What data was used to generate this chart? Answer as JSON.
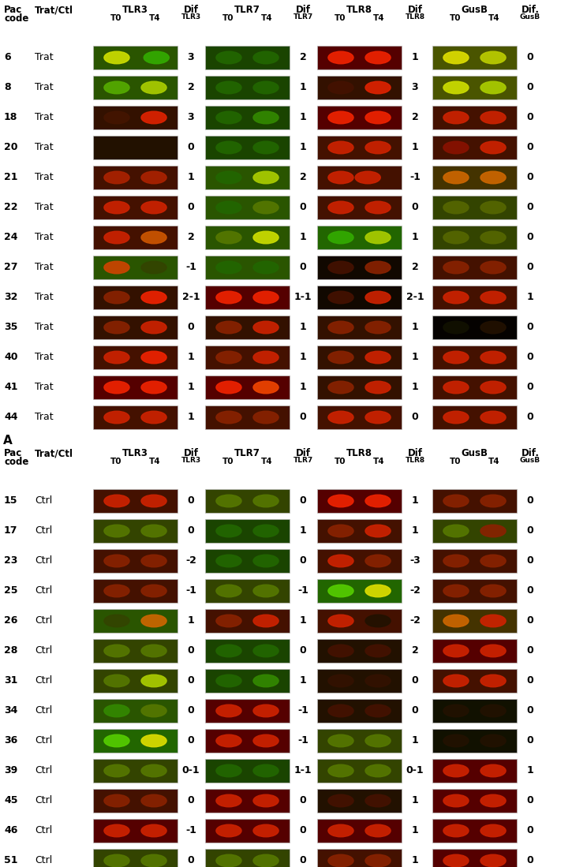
{
  "trat_rows": [
    {
      "pac": "6",
      "type": "Trat",
      "tlr3_bg": "#2a5500",
      "tlr3_b1": "#ccdd00",
      "tlr3_b2": "#33aa00",
      "tlr3_b1x": 0.28,
      "tlr3_b2x": 0.75,
      "dif3": "3",
      "tlr7_bg": "#1a4400",
      "tlr7_b1": "#226600",
      "tlr7_b2": "#226600",
      "tlr7_b1x": 0.28,
      "tlr7_b2x": 0.72,
      "dif7": "2",
      "tlr8_bg": "#550000",
      "tlr8_b1": "#ee2200",
      "tlr8_b2": "#ee2200",
      "tlr8_b1x": 0.28,
      "tlr8_b2x": 0.72,
      "dif8": "1",
      "gusb_bg": "#4a5500",
      "gusb_b1": "#dddd00",
      "gusb_b2": "#bbcc00",
      "gusb_b1x": 0.28,
      "gusb_b2x": 0.72,
      "difg": "0"
    },
    {
      "pac": "8",
      "type": "Trat",
      "tlr3_bg": "#2a5500",
      "tlr3_b1": "#55aa00",
      "tlr3_b2": "#aacc00",
      "tlr3_b1x": 0.28,
      "tlr3_b2x": 0.72,
      "dif3": "2",
      "tlr7_bg": "#1a4400",
      "tlr7_b1": "#226600",
      "tlr7_b2": "#226600",
      "tlr7_b1x": 0.28,
      "tlr7_b2x": 0.72,
      "dif7": "1",
      "tlr8_bg": "#331100",
      "tlr8_b1": "#441100",
      "tlr8_b2": "#dd2200",
      "tlr8_b1x": 0.28,
      "tlr8_b2x": 0.72,
      "dif8": "3",
      "gusb_bg": "#4a5500",
      "gusb_b1": "#ccdd00",
      "gusb_b2": "#aacc00",
      "gusb_b1x": 0.28,
      "gusb_b2x": 0.72,
      "difg": "0"
    },
    {
      "pac": "18",
      "type": "Trat",
      "tlr3_bg": "#331100",
      "tlr3_b1": "#441500",
      "tlr3_b2": "#dd2200",
      "tlr3_b1x": 0.28,
      "tlr3_b2x": 0.72,
      "dif3": "3",
      "tlr7_bg": "#1a4400",
      "tlr7_b1": "#226600",
      "tlr7_b2": "#338800",
      "tlr7_b1x": 0.28,
      "tlr7_b2x": 0.72,
      "dif7": "1",
      "tlr8_bg": "#550000",
      "tlr8_b1": "#ee2200",
      "tlr8_b2": "#ee2200",
      "tlr8_b1x": 0.28,
      "tlr8_b2x": 0.72,
      "dif8": "2",
      "gusb_bg": "#441100",
      "gusb_b1": "#cc2200",
      "gusb_b2": "#cc2200",
      "gusb_b1x": 0.28,
      "gusb_b2x": 0.72,
      "difg": "0"
    },
    {
      "pac": "20",
      "type": "Trat",
      "tlr3_bg": "#221100",
      "tlr3_b1": "#221100",
      "tlr3_b2": "#221100",
      "tlr3_b1x": 0.28,
      "tlr3_b2x": 0.72,
      "dif3": "0",
      "tlr7_bg": "#1a4400",
      "tlr7_b1": "#226600",
      "tlr7_b2": "#226600",
      "tlr7_b1x": 0.28,
      "tlr7_b2x": 0.72,
      "dif7": "1",
      "tlr8_bg": "#441100",
      "tlr8_b1": "#cc2200",
      "tlr8_b2": "#cc2200",
      "tlr8_b1x": 0.28,
      "tlr8_b2x": 0.72,
      "dif8": "1",
      "gusb_bg": "#441100",
      "gusb_b1": "#881100",
      "gusb_b2": "#cc2200",
      "gusb_b1x": 0.28,
      "gusb_b2x": 0.72,
      "difg": "0"
    },
    {
      "pac": "21",
      "type": "Trat",
      "tlr3_bg": "#441100",
      "tlr3_b1": "#aa2200",
      "tlr3_b2": "#aa2200",
      "tlr3_b1x": 0.28,
      "tlr3_b2x": 0.72,
      "dif3": "1",
      "tlr7_bg": "#2a5500",
      "tlr7_b1": "#226600",
      "tlr7_b2": "#aacc00",
      "tlr7_b1x": 0.28,
      "tlr7_b2x": 0.72,
      "dif7": "2",
      "tlr8_bg": "#441100",
      "tlr8_b1": "#cc2200",
      "tlr8_b2": "#cc2200",
      "tlr8_b1x": 0.28,
      "tlr8_b2x": 0.6,
      "dif8": "-1",
      "gusb_bg": "#443300",
      "gusb_b1": "#cc6600",
      "gusb_b2": "#cc6600",
      "gusb_b1x": 0.28,
      "gusb_b2x": 0.72,
      "difg": "0"
    },
    {
      "pac": "22",
      "type": "Trat",
      "tlr3_bg": "#441100",
      "tlr3_b1": "#cc2200",
      "tlr3_b2": "#cc2200",
      "tlr3_b1x": 0.28,
      "tlr3_b2x": 0.72,
      "dif3": "0",
      "tlr7_bg": "#2a5500",
      "tlr7_b1": "#226600",
      "tlr7_b2": "#557700",
      "tlr7_b1x": 0.28,
      "tlr7_b2x": 0.72,
      "dif7": "0",
      "tlr8_bg": "#441100",
      "tlr8_b1": "#cc2200",
      "tlr8_b2": "#cc2200",
      "tlr8_b1x": 0.28,
      "tlr8_b2x": 0.72,
      "dif8": "0",
      "gusb_bg": "#334400",
      "gusb_b1": "#556600",
      "gusb_b2": "#556600",
      "gusb_b1x": 0.28,
      "gusb_b2x": 0.72,
      "difg": "0"
    },
    {
      "pac": "24",
      "type": "Trat",
      "tlr3_bg": "#441100",
      "tlr3_b1": "#cc2200",
      "tlr3_b2": "#cc5500",
      "tlr3_b1x": 0.28,
      "tlr3_b2x": 0.72,
      "dif3": "2",
      "tlr7_bg": "#2a5500",
      "tlr7_b1": "#557700",
      "tlr7_b2": "#ccdd00",
      "tlr7_b1x": 0.28,
      "tlr7_b2x": 0.72,
      "dif7": "1",
      "tlr8_bg": "#226600",
      "tlr8_b1": "#33aa00",
      "tlr8_b2": "#aacc00",
      "tlr8_b1x": 0.28,
      "tlr8_b2x": 0.72,
      "dif8": "1",
      "gusb_bg": "#334400",
      "gusb_b1": "#556600",
      "gusb_b2": "#556600",
      "gusb_b1x": 0.28,
      "gusb_b2x": 0.72,
      "difg": "0"
    },
    {
      "pac": "27",
      "type": "Trat",
      "tlr3_bg": "#2a5500",
      "tlr3_b1": "#cc4400",
      "tlr3_b2": "#334400",
      "tlr3_b1x": 0.28,
      "tlr3_b2x": 0.72,
      "dif3": "-1",
      "tlr7_bg": "#2a5500",
      "tlr7_b1": "#226600",
      "tlr7_b2": "#226600",
      "tlr7_b1x": 0.28,
      "tlr7_b2x": 0.72,
      "dif7": "0",
      "tlr8_bg": "#110800",
      "tlr8_b1": "#441100",
      "tlr8_b2": "#882200",
      "tlr8_b1x": 0.28,
      "tlr8_b2x": 0.72,
      "dif8": "2",
      "gusb_bg": "#441100",
      "gusb_b1": "#882200",
      "gusb_b2": "#882200",
      "gusb_b1x": 0.28,
      "gusb_b2x": 0.72,
      "difg": "0"
    },
    {
      "pac": "32",
      "type": "Trat",
      "tlr3_bg": "#331100",
      "tlr3_b1": "#882200",
      "tlr3_b2": "#ee2200",
      "tlr3_b1x": 0.28,
      "tlr3_b2x": 0.72,
      "dif3": "2-1",
      "tlr7_bg": "#550000",
      "tlr7_b1": "#ee2200",
      "tlr7_b2": "#ee2200",
      "tlr7_b1x": 0.28,
      "tlr7_b2x": 0.72,
      "dif7": "1-1",
      "tlr8_bg": "#110800",
      "tlr8_b1": "#441100",
      "tlr8_b2": "#cc2200",
      "tlr8_b1x": 0.28,
      "tlr8_b2x": 0.72,
      "dif8": "2-1",
      "gusb_bg": "#441100",
      "gusb_b1": "#cc2200",
      "gusb_b2": "#cc2200",
      "gusb_b1x": 0.28,
      "gusb_b2x": 0.72,
      "difg": "1"
    },
    {
      "pac": "35",
      "type": "Trat",
      "tlr3_bg": "#331100",
      "tlr3_b1": "#882200",
      "tlr3_b2": "#cc2200",
      "tlr3_b1x": 0.28,
      "tlr3_b2x": 0.72,
      "dif3": "0",
      "tlr7_bg": "#331100",
      "tlr7_b1": "#882200",
      "tlr7_b2": "#cc2200",
      "tlr7_b1x": 0.28,
      "tlr7_b2x": 0.72,
      "dif7": "1",
      "tlr8_bg": "#331100",
      "tlr8_b1": "#882200",
      "tlr8_b2": "#882200",
      "tlr8_b1x": 0.28,
      "tlr8_b2x": 0.72,
      "dif8": "1",
      "gusb_bg": "#050200",
      "gusb_b1": "#111100",
      "gusb_b2": "#221100",
      "gusb_b1x": 0.28,
      "gusb_b2x": 0.72,
      "difg": "0"
    },
    {
      "pac": "40",
      "type": "Trat",
      "tlr3_bg": "#441100",
      "tlr3_b1": "#cc2200",
      "tlr3_b2": "#ee2200",
      "tlr3_b1x": 0.28,
      "tlr3_b2x": 0.72,
      "dif3": "1",
      "tlr7_bg": "#441100",
      "tlr7_b1": "#882200",
      "tlr7_b2": "#cc2200",
      "tlr7_b1x": 0.28,
      "tlr7_b2x": 0.72,
      "dif7": "1",
      "tlr8_bg": "#331100",
      "tlr8_b1": "#882200",
      "tlr8_b2": "#cc2200",
      "tlr8_b1x": 0.28,
      "tlr8_b2x": 0.72,
      "dif8": "1",
      "gusb_bg": "#441100",
      "gusb_b1": "#cc2200",
      "gusb_b2": "#cc2200",
      "gusb_b1x": 0.28,
      "gusb_b2x": 0.72,
      "difg": "0"
    },
    {
      "pac": "41",
      "type": "Trat",
      "tlr3_bg": "#550000",
      "tlr3_b1": "#ee2200",
      "tlr3_b2": "#ee2200",
      "tlr3_b1x": 0.28,
      "tlr3_b2x": 0.72,
      "dif3": "1",
      "tlr7_bg": "#550000",
      "tlr7_b1": "#ee2200",
      "tlr7_b2": "#ee4400",
      "tlr7_b1x": 0.28,
      "tlr7_b2x": 0.72,
      "dif7": "1",
      "tlr8_bg": "#331100",
      "tlr8_b1": "#882200",
      "tlr8_b2": "#cc2200",
      "tlr8_b1x": 0.28,
      "tlr8_b2x": 0.72,
      "dif8": "1",
      "gusb_bg": "#441100",
      "gusb_b1": "#cc2200",
      "gusb_b2": "#cc2200",
      "gusb_b1x": 0.28,
      "gusb_b2x": 0.72,
      "difg": "0"
    },
    {
      "pac": "44",
      "type": "Trat",
      "tlr3_bg": "#441100",
      "tlr3_b1": "#cc2200",
      "tlr3_b2": "#cc2200",
      "tlr3_b1x": 0.28,
      "tlr3_b2x": 0.72,
      "dif3": "1",
      "tlr7_bg": "#441100",
      "tlr7_b1": "#882200",
      "tlr7_b2": "#882200",
      "tlr7_b1x": 0.28,
      "tlr7_b2x": 0.72,
      "dif7": "0",
      "tlr8_bg": "#441100",
      "tlr8_b1": "#cc2200",
      "tlr8_b2": "#cc2200",
      "tlr8_b1x": 0.28,
      "tlr8_b2x": 0.72,
      "dif8": "0",
      "gusb_bg": "#441100",
      "gusb_b1": "#cc2200",
      "gusb_b2": "#cc2200",
      "gusb_b1x": 0.28,
      "gusb_b2x": 0.72,
      "difg": "0"
    }
  ],
  "ctrl_rows": [
    {
      "pac": "15",
      "type": "Ctrl",
      "tlr3_bg": "#441100",
      "tlr3_b1": "#cc2200",
      "tlr3_b2": "#cc2200",
      "tlr3_b1x": 0.28,
      "tlr3_b2x": 0.72,
      "dif3": "0",
      "tlr7_bg": "#334400",
      "tlr7_b1": "#557700",
      "tlr7_b2": "#557700",
      "tlr7_b1x": 0.28,
      "tlr7_b2x": 0.72,
      "dif7": "0",
      "tlr8_bg": "#550000",
      "tlr8_b1": "#ee2200",
      "tlr8_b2": "#ee2200",
      "tlr8_b1x": 0.28,
      "tlr8_b2x": 0.72,
      "dif8": "1",
      "gusb_bg": "#441100",
      "gusb_b1": "#882200",
      "gusb_b2": "#882200",
      "gusb_b1x": 0.28,
      "gusb_b2x": 0.72,
      "difg": "0"
    },
    {
      "pac": "17",
      "type": "Ctrl",
      "tlr3_bg": "#334400",
      "tlr3_b1": "#557700",
      "tlr3_b2": "#557700",
      "tlr3_b1x": 0.28,
      "tlr3_b2x": 0.72,
      "dif3": "0",
      "tlr7_bg": "#1a4400",
      "tlr7_b1": "#226600",
      "tlr7_b2": "#226600",
      "tlr7_b1x": 0.28,
      "tlr7_b2x": 0.72,
      "dif7": "1",
      "tlr8_bg": "#441100",
      "tlr8_b1": "#882200",
      "tlr8_b2": "#cc2200",
      "tlr8_b1x": 0.28,
      "tlr8_b2x": 0.72,
      "dif8": "1",
      "gusb_bg": "#334400",
      "gusb_b1": "#557700",
      "gusb_b2": "#882200",
      "gusb_b1x": 0.28,
      "gusb_b2x": 0.72,
      "difg": "0"
    },
    {
      "pac": "23",
      "type": "Ctrl",
      "tlr3_bg": "#441100",
      "tlr3_b1": "#882200",
      "tlr3_b2": "#882200",
      "tlr3_b1x": 0.28,
      "tlr3_b2x": 0.72,
      "dif3": "-2",
      "tlr7_bg": "#1a4400",
      "tlr7_b1": "#226600",
      "tlr7_b2": "#226600",
      "tlr7_b1x": 0.28,
      "tlr7_b2x": 0.72,
      "dif7": "0",
      "tlr8_bg": "#441100",
      "tlr8_b1": "#cc2200",
      "tlr8_b2": "#882200",
      "tlr8_b1x": 0.28,
      "tlr8_b2x": 0.72,
      "dif8": "-3",
      "gusb_bg": "#441100",
      "gusb_b1": "#882200",
      "gusb_b2": "#882200",
      "gusb_b1x": 0.28,
      "gusb_b2x": 0.72,
      "difg": "0"
    },
    {
      "pac": "25",
      "type": "Ctrl",
      "tlr3_bg": "#441100",
      "tlr3_b1": "#882200",
      "tlr3_b2": "#882200",
      "tlr3_b1x": 0.28,
      "tlr3_b2x": 0.72,
      "dif3": "-1",
      "tlr7_bg": "#334400",
      "tlr7_b1": "#557700",
      "tlr7_b2": "#557700",
      "tlr7_b1x": 0.28,
      "tlr7_b2x": 0.72,
      "dif7": "-1",
      "tlr8_bg": "#226600",
      "tlr8_b1": "#55cc00",
      "tlr8_b2": "#dddd00",
      "tlr8_b1x": 0.28,
      "tlr8_b2x": 0.72,
      "dif8": "-2",
      "gusb_bg": "#441100",
      "gusb_b1": "#882200",
      "gusb_b2": "#882200",
      "gusb_b1x": 0.28,
      "gusb_b2x": 0.72,
      "difg": "0"
    },
    {
      "pac": "26",
      "type": "Ctrl",
      "tlr3_bg": "#2a5500",
      "tlr3_b1": "#334400",
      "tlr3_b2": "#cc6600",
      "tlr3_b1x": 0.28,
      "tlr3_b2x": 0.72,
      "dif3": "1",
      "tlr7_bg": "#441100",
      "tlr7_b1": "#882200",
      "tlr7_b2": "#cc2200",
      "tlr7_b1x": 0.28,
      "tlr7_b2x": 0.72,
      "dif7": "1",
      "tlr8_bg": "#441100",
      "tlr8_b1": "#cc2200",
      "tlr8_b2": "#221100",
      "tlr8_b1x": 0.28,
      "tlr8_b2x": 0.72,
      "dif8": "-2",
      "gusb_bg": "#443300",
      "gusb_b1": "#cc6600",
      "gusb_b2": "#cc2200",
      "gusb_b1x": 0.28,
      "gusb_b2x": 0.72,
      "difg": "0"
    },
    {
      "pac": "28",
      "type": "Ctrl",
      "tlr3_bg": "#334400",
      "tlr3_b1": "#557700",
      "tlr3_b2": "#557700",
      "tlr3_b1x": 0.28,
      "tlr3_b2x": 0.72,
      "dif3": "0",
      "tlr7_bg": "#1a4400",
      "tlr7_b1": "#226600",
      "tlr7_b2": "#226600",
      "tlr7_b1x": 0.28,
      "tlr7_b2x": 0.72,
      "dif7": "0",
      "tlr8_bg": "#221100",
      "tlr8_b1": "#441100",
      "tlr8_b2": "#441100",
      "tlr8_b1x": 0.28,
      "tlr8_b2x": 0.72,
      "dif8": "2",
      "gusb_bg": "#550000",
      "gusb_b1": "#cc2200",
      "gusb_b2": "#cc2200",
      "gusb_b1x": 0.28,
      "gusb_b2x": 0.72,
      "difg": "0"
    },
    {
      "pac": "31",
      "type": "Ctrl",
      "tlr3_bg": "#334400",
      "tlr3_b1": "#557700",
      "tlr3_b2": "#aacc00",
      "tlr3_b1x": 0.28,
      "tlr3_b2x": 0.72,
      "dif3": "0",
      "tlr7_bg": "#1a4400",
      "tlr7_b1": "#226600",
      "tlr7_b2": "#338800",
      "tlr7_b1x": 0.28,
      "tlr7_b2x": 0.72,
      "dif7": "1",
      "tlr8_bg": "#221100",
      "tlr8_b1": "#331100",
      "tlr8_b2": "#331100",
      "tlr8_b1x": 0.28,
      "tlr8_b2x": 0.72,
      "dif8": "0",
      "gusb_bg": "#441100",
      "gusb_b1": "#cc2200",
      "gusb_b2": "#cc2200",
      "gusb_b1x": 0.28,
      "gusb_b2x": 0.72,
      "difg": "0"
    },
    {
      "pac": "34",
      "type": "Ctrl",
      "tlr3_bg": "#2a5500",
      "tlr3_b1": "#338800",
      "tlr3_b2": "#557700",
      "tlr3_b1x": 0.28,
      "tlr3_b2x": 0.72,
      "dif3": "0",
      "tlr7_bg": "#550000",
      "tlr7_b1": "#cc2200",
      "tlr7_b2": "#cc2200",
      "tlr7_b1x": 0.28,
      "tlr7_b2x": 0.72,
      "dif7": "-1",
      "tlr8_bg": "#221100",
      "tlr8_b1": "#441100",
      "tlr8_b2": "#441100",
      "tlr8_b1x": 0.28,
      "tlr8_b2x": 0.72,
      "dif8": "0",
      "gusb_bg": "#111100",
      "gusb_b1": "#221100",
      "gusb_b2": "#221100",
      "gusb_b1x": 0.28,
      "gusb_b2x": 0.72,
      "difg": "0"
    },
    {
      "pac": "36",
      "type": "Ctrl",
      "tlr3_bg": "#226600",
      "tlr3_b1": "#55cc00",
      "tlr3_b2": "#dddd00",
      "tlr3_b1x": 0.28,
      "tlr3_b2x": 0.72,
      "dif3": "0",
      "tlr7_bg": "#550000",
      "tlr7_b1": "#cc2200",
      "tlr7_b2": "#cc2200",
      "tlr7_b1x": 0.28,
      "tlr7_b2x": 0.72,
      "dif7": "-1",
      "tlr8_bg": "#334400",
      "tlr8_b1": "#557700",
      "tlr8_b2": "#557700",
      "tlr8_b1x": 0.28,
      "tlr8_b2x": 0.72,
      "dif8": "1",
      "gusb_bg": "#111100",
      "gusb_b1": "#221100",
      "gusb_b2": "#221100",
      "gusb_b1x": 0.28,
      "gusb_b2x": 0.72,
      "difg": "0"
    },
    {
      "pac": "39",
      "type": "Ctrl",
      "tlr3_bg": "#334400",
      "tlr3_b1": "#557700",
      "tlr3_b2": "#557700",
      "tlr3_b1x": 0.28,
      "tlr3_b2x": 0.72,
      "dif3": "0-1",
      "tlr7_bg": "#1a4400",
      "tlr7_b1": "#226600",
      "tlr7_b2": "#226600",
      "tlr7_b1x": 0.28,
      "tlr7_b2x": 0.72,
      "dif7": "1-1",
      "tlr8_bg": "#334400",
      "tlr8_b1": "#557700",
      "tlr8_b2": "#557700",
      "tlr8_b1x": 0.28,
      "tlr8_b2x": 0.72,
      "dif8": "0-1",
      "gusb_bg": "#550000",
      "gusb_b1": "#cc2200",
      "gusb_b2": "#cc2200",
      "gusb_b1x": 0.28,
      "gusb_b2x": 0.72,
      "difg": "1"
    },
    {
      "pac": "45",
      "type": "Ctrl",
      "tlr3_bg": "#441100",
      "tlr3_b1": "#882200",
      "tlr3_b2": "#882200",
      "tlr3_b1x": 0.28,
      "tlr3_b2x": 0.72,
      "dif3": "0",
      "tlr7_bg": "#550000",
      "tlr7_b1": "#cc2200",
      "tlr7_b2": "#cc2200",
      "tlr7_b1x": 0.28,
      "tlr7_b2x": 0.72,
      "dif7": "0",
      "tlr8_bg": "#221100",
      "tlr8_b1": "#441100",
      "tlr8_b2": "#441100",
      "tlr8_b1x": 0.28,
      "tlr8_b2x": 0.72,
      "dif8": "1",
      "gusb_bg": "#550000",
      "gusb_b1": "#cc2200",
      "gusb_b2": "#cc2200",
      "gusb_b1x": 0.28,
      "gusb_b2x": 0.72,
      "difg": "0"
    },
    {
      "pac": "46",
      "type": "Ctrl",
      "tlr3_bg": "#550000",
      "tlr3_b1": "#cc2200",
      "tlr3_b2": "#cc2200",
      "tlr3_b1x": 0.28,
      "tlr3_b2x": 0.72,
      "dif3": "-1",
      "tlr7_bg": "#550000",
      "tlr7_b1": "#cc2200",
      "tlr7_b2": "#cc2200",
      "tlr7_b1x": 0.28,
      "tlr7_b2x": 0.72,
      "dif7": "0",
      "tlr8_bg": "#550000",
      "tlr8_b1": "#cc2200",
      "tlr8_b2": "#cc2200",
      "tlr8_b1x": 0.28,
      "tlr8_b2x": 0.72,
      "dif8": "1",
      "gusb_bg": "#550000",
      "gusb_b1": "#cc2200",
      "gusb_b2": "#cc2200",
      "gusb_b1x": 0.28,
      "gusb_b2x": 0.72,
      "difg": "0"
    },
    {
      "pac": "51",
      "type": "Ctrl",
      "tlr3_bg": "#334400",
      "tlr3_b1": "#557700",
      "tlr3_b2": "#557700",
      "tlr3_b1x": 0.28,
      "tlr3_b2x": 0.72,
      "dif3": "0",
      "tlr7_bg": "#334400",
      "tlr7_b1": "#557700",
      "tlr7_b2": "#557700",
      "tlr7_b1x": 0.28,
      "tlr7_b2x": 0.72,
      "dif7": "0",
      "tlr8_bg": "#441100",
      "tlr8_b1": "#882200",
      "tlr8_b2": "#882200",
      "tlr8_b1x": 0.28,
      "tlr8_b2x": 0.72,
      "dif8": "1",
      "gusb_bg": "#550000",
      "gusb_b1": "#cc2200",
      "gusb_b2": "#cc2200",
      "gusb_b1x": 0.28,
      "gusb_b2x": 0.72,
      "difg": "0"
    }
  ]
}
